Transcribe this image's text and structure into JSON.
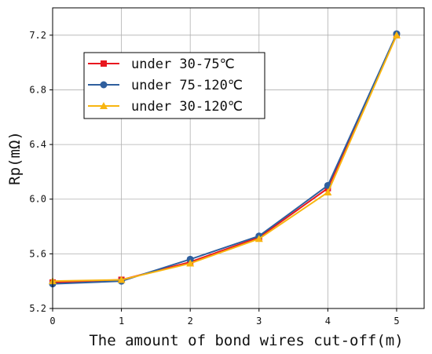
{
  "chart_data": {
    "type": "line",
    "x": [
      0,
      1,
      2,
      3,
      4,
      5
    ],
    "xticks": [
      "0",
      "1",
      "2",
      "3",
      "4",
      "5"
    ],
    "yticks": [
      "5.2",
      "5.6",
      "6.0",
      "6.4",
      "6.8",
      "7.2"
    ],
    "xlabel": "The amount of bond wires cut-off(m)",
    "ylabel": "Rp(mΩ)",
    "xlim": [
      0,
      5.4
    ],
    "ylim": [
      5.2,
      7.4
    ],
    "grid": true,
    "legend_position": "upper-left",
    "series": [
      {
        "name": "under 30-75℃",
        "color": "#e8171f",
        "marker": "square",
        "values": [
          5.39,
          5.41,
          5.54,
          5.72,
          6.08,
          7.2
        ]
      },
      {
        "name": "under 75-120℃",
        "color": "#2f5f9e",
        "marker": "circle",
        "values": [
          5.38,
          5.4,
          5.56,
          5.73,
          6.1,
          7.21
        ]
      },
      {
        "name": "under 30-120℃",
        "color": "#f8b510",
        "marker": "triangle",
        "values": [
          5.4,
          5.41,
          5.53,
          5.71,
          6.05,
          7.2
        ]
      }
    ]
  }
}
